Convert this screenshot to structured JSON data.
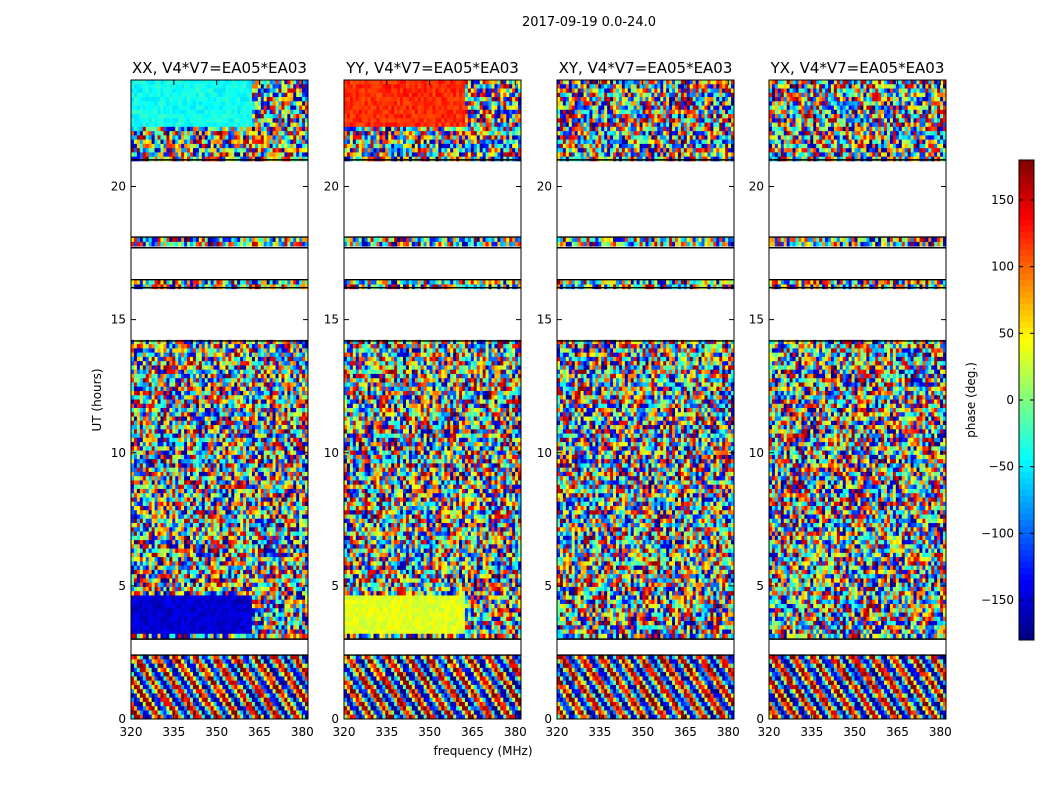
{
  "figure_title": "2017-09-19 0.0-24.0",
  "chart_data": {
    "type": "heatmap",
    "title": "2017-09-19 0.0-24.0",
    "xlabel": "frequency (MHz)",
    "ylabel": "UT (hours)",
    "xlim": [
      320,
      382
    ],
    "ylim": [
      0,
      24
    ],
    "x_ticks": [
      320,
      335,
      350,
      365,
      380
    ],
    "y_ticks": [
      0,
      5,
      10,
      15,
      20
    ],
    "colormap": "jet",
    "colorbar": {
      "label": "phase (deg.)",
      "range": [
        -180,
        180
      ],
      "ticks": [
        -150,
        -100,
        -50,
        0,
        50,
        100,
        150
      ],
      "tick_labels": [
        "−150",
        "−100",
        "−50",
        "0",
        "50",
        "100",
        "150"
      ]
    },
    "panels": [
      {
        "name": "XX, V4*V7=EA05*EA03"
      },
      {
        "name": "YY, V4*V7=EA05*EA03"
      },
      {
        "name": "XY, V4*V7=EA05*EA03"
      },
      {
        "name": "YX, V4*V7=EA05*EA03"
      }
    ],
    "flagged_ut_ranges_hours": [
      [
        2.4,
        3.0
      ],
      [
        14.2,
        16.2
      ],
      [
        16.5,
        17.7
      ],
      [
        18.1,
        21.0
      ]
    ],
    "coherent_phase_blocks": [
      {
        "panel": "XX",
        "ut": [
          3.2,
          4.7
        ],
        "freq": [
          320,
          362
        ],
        "phase_deg": -150
      },
      {
        "panel": "XX",
        "ut": [
          22.2,
          24.0
        ],
        "freq": [
          320,
          362
        ],
        "phase_deg": -40
      },
      {
        "panel": "YY",
        "ut": [
          3.2,
          4.7
        ],
        "freq": [
          320,
          362
        ],
        "phase_deg": 35
      },
      {
        "panel": "YY",
        "ut": [
          22.2,
          24.0
        ],
        "freq": [
          320,
          362
        ],
        "phase_deg": 120
      }
    ]
  }
}
